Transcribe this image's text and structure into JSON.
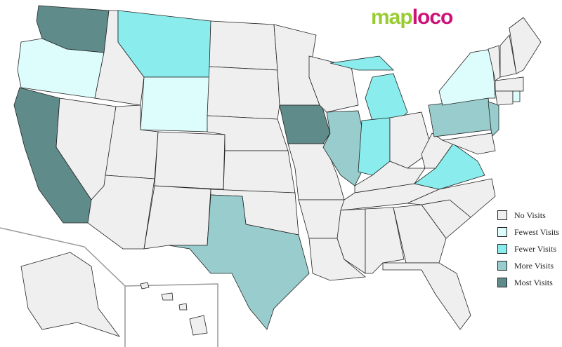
{
  "logo": {
    "part1": "map",
    "part2": "loco",
    "color1": "#99cc33",
    "color2": "#cc1177"
  },
  "legend": [
    {
      "label": "No Visits",
      "color": "#efefef"
    },
    {
      "label": "Fewest Visits",
      "color": "#ddfcfc"
    },
    {
      "label": "Fewer Visits",
      "color": "#8aecec"
    },
    {
      "label": "More Visits",
      "color": "#99cccc"
    },
    {
      "label": "Most Visits",
      "color": "#5f8b8b"
    }
  ],
  "states": {
    "Washington": 4,
    "Oregon": 1,
    "California": 4,
    "Montana": 2,
    "Wyoming": 1,
    "Iowa": 4,
    "Texas": 3,
    "Illinois": 3,
    "Michigan": 2,
    "Indiana": 2,
    "Virginia": 2,
    "Pennsylvania": 3,
    "New Jersey": 3,
    "New York": 1,
    "Rhode Island": 1
  }
}
